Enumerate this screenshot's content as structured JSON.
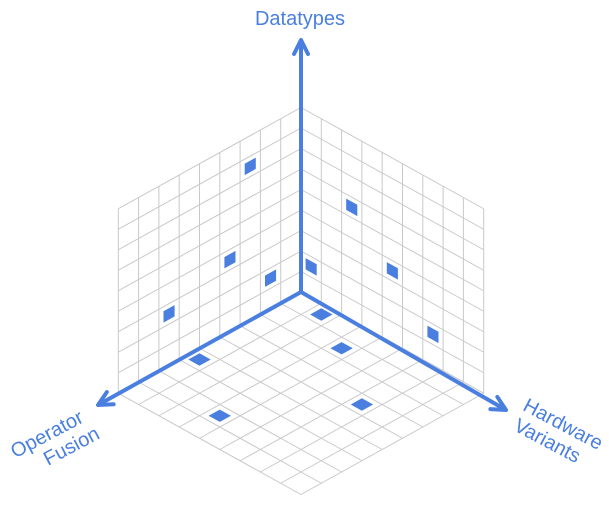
{
  "axes": {
    "y": {
      "label": "Datatypes"
    },
    "left": {
      "label_line1": "Operator",
      "label_line2": "Fusion"
    },
    "right": {
      "label_line1": "Hardware",
      "label_line2": "Variants"
    }
  },
  "colors": {
    "accent": "#4A7FE0",
    "grid": "#C9C9C9",
    "background": "#FFFFFF"
  }
}
